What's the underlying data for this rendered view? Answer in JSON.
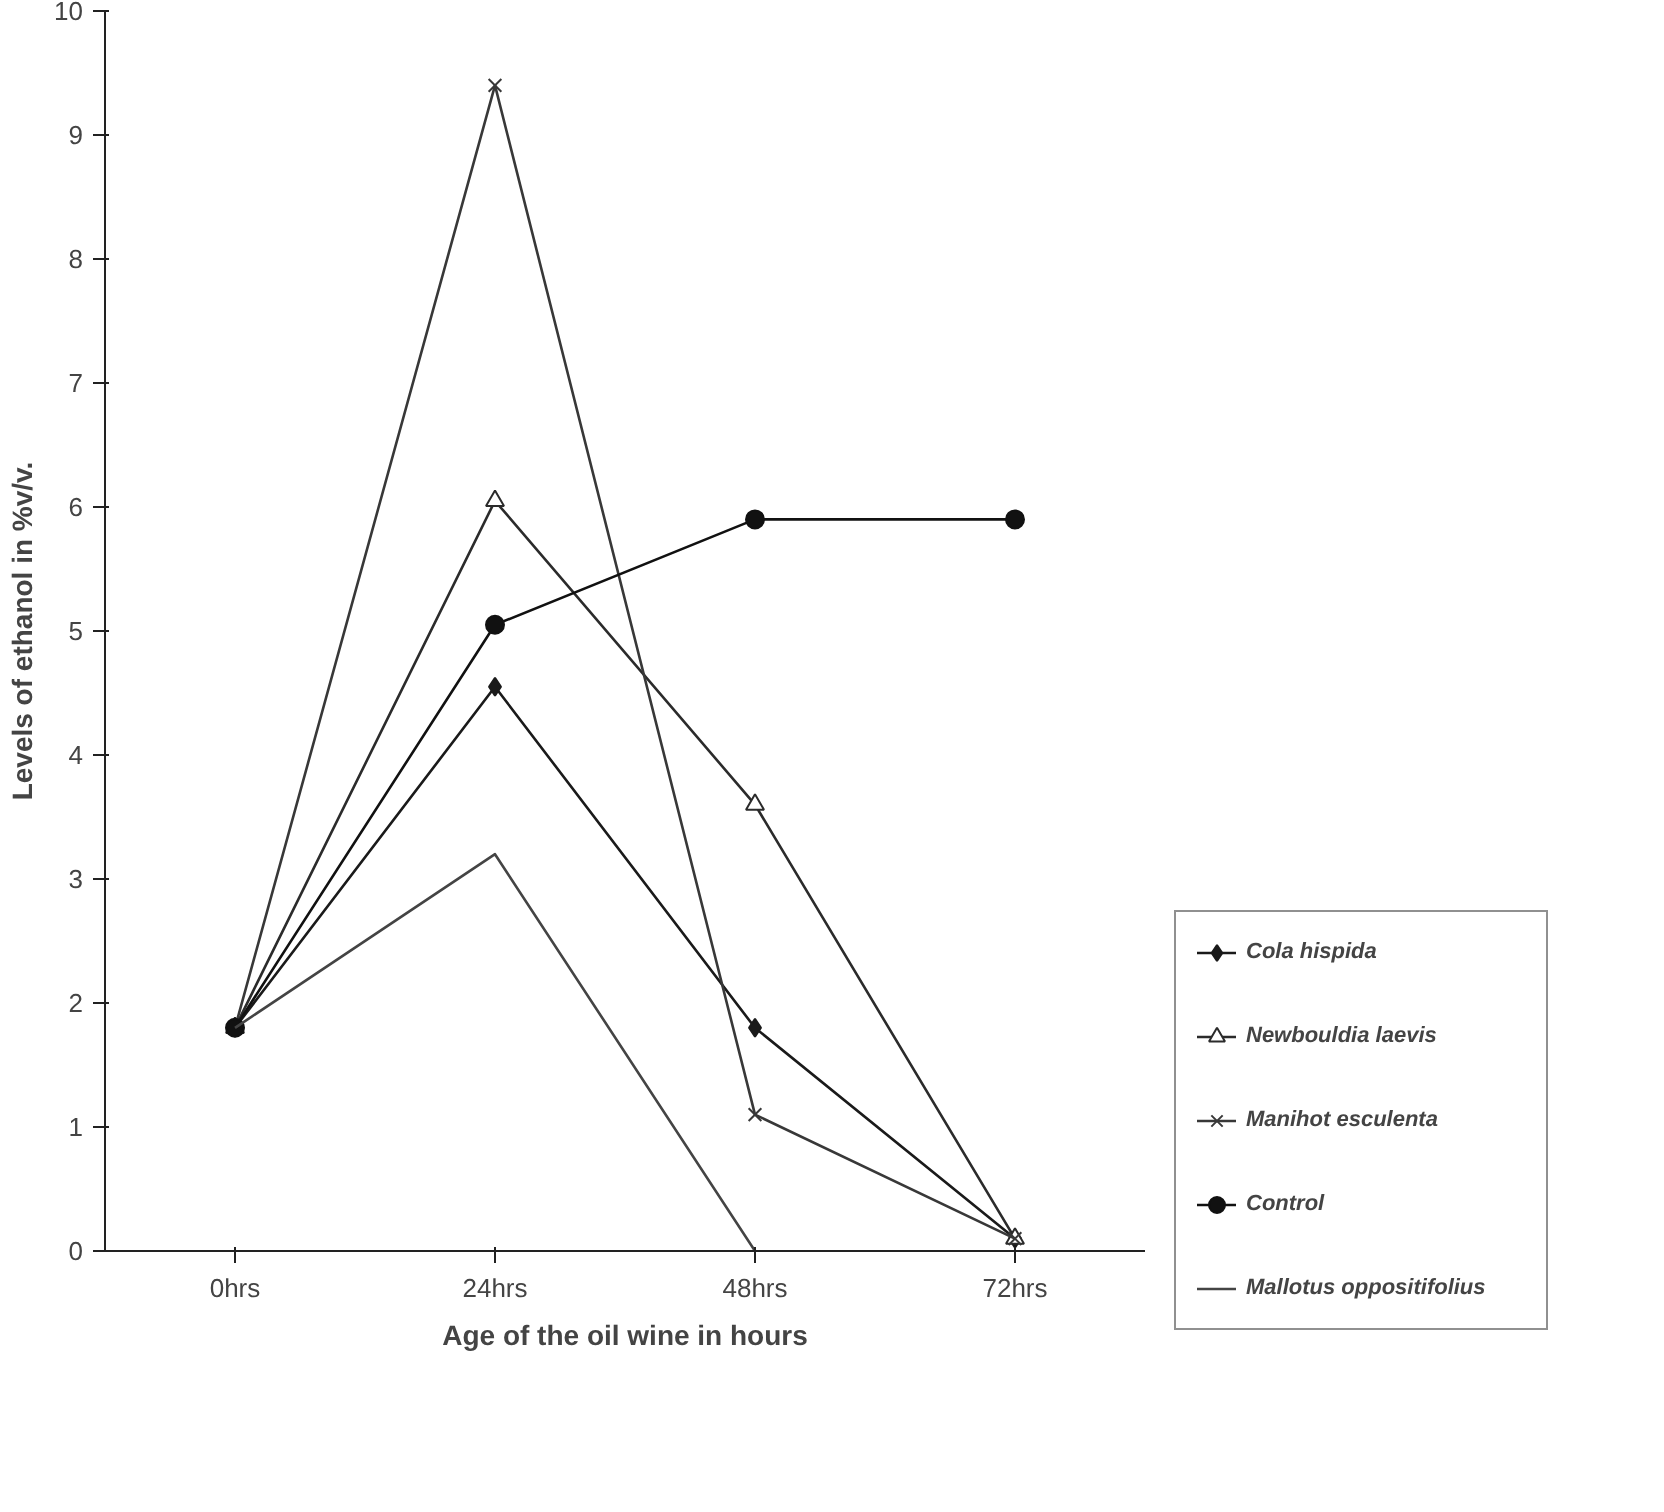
{
  "chart_data": {
    "type": "line",
    "xlabel": "Age of the oil wine in hours",
    "ylabel": "Levels of ethanol in %v/v.",
    "categories": [
      "0hrs",
      "24hrs",
      "48hrs",
      "72hrs"
    ],
    "ylim": [
      0,
      10
    ],
    "yticks": [
      0,
      1,
      2,
      3,
      4,
      5,
      6,
      7,
      8,
      9,
      10
    ],
    "grid": false,
    "legend": "bottom right",
    "series": [
      {
        "name": "Cola hispida",
        "color": "#1a1a1a",
        "marker": "diamond",
        "values": [
          1.8,
          4.55,
          1.8,
          0.1
        ]
      },
      {
        "name": "Newbouldia laevis",
        "color": "#2b2b2b",
        "marker": "triangle",
        "values": [
          1.8,
          6.05,
          3.6,
          0.1
        ]
      },
      {
        "name": "Manihot esculenta",
        "color": "#383838",
        "marker": "cross",
        "values": [
          1.8,
          9.4,
          1.1,
          0.1
        ]
      },
      {
        "name": "Control",
        "color": "#111111",
        "marker": "circle",
        "values": [
          1.8,
          5.05,
          5.9,
          5.9
        ]
      },
      {
        "name": "Mallotus oppositifolius",
        "color": "#444444",
        "marker": "none",
        "values": [
          1.8,
          3.2,
          0,
          null
        ]
      }
    ]
  }
}
